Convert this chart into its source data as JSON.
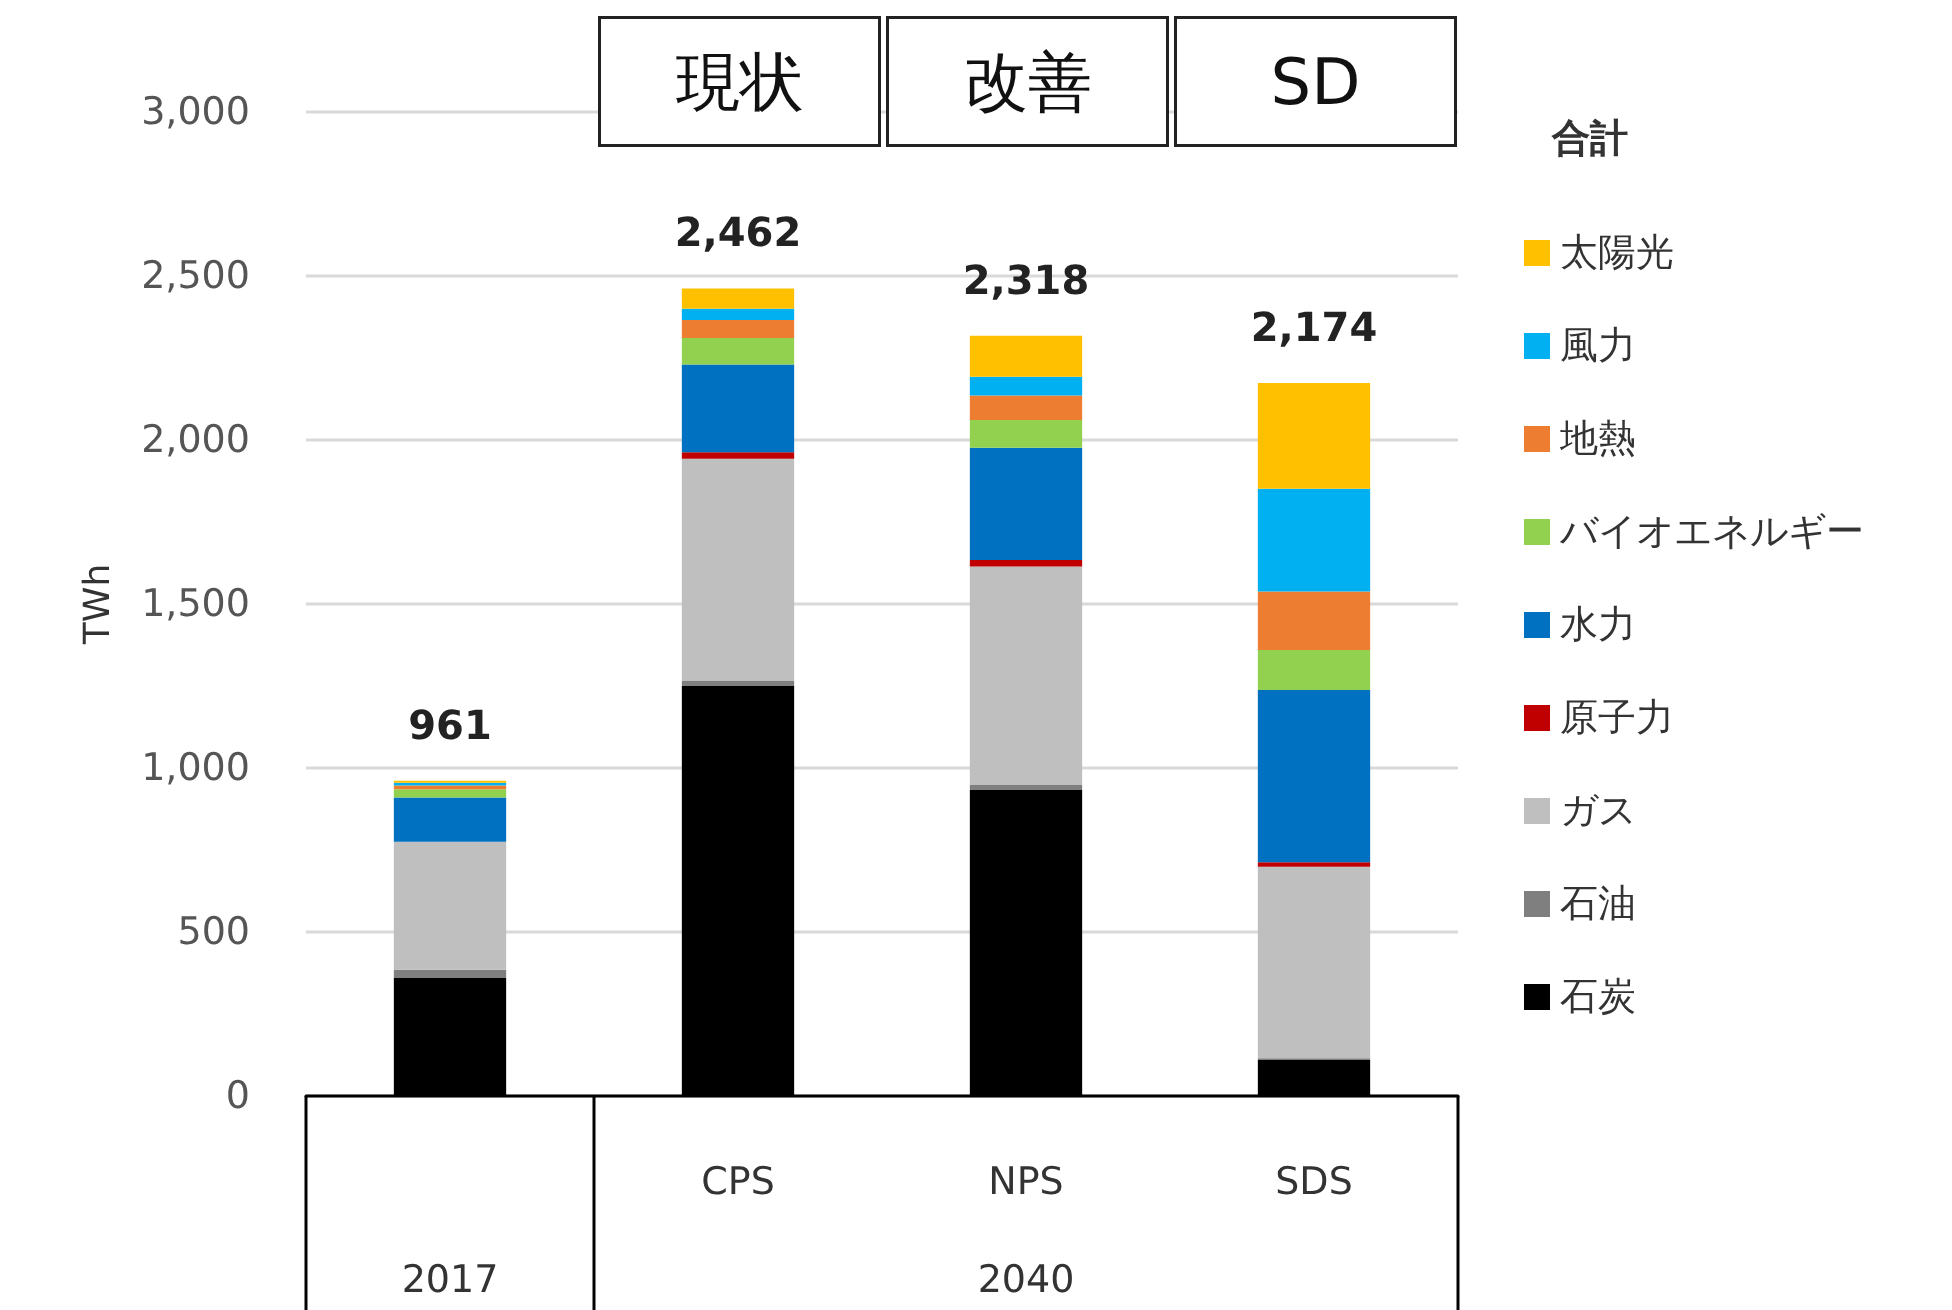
{
  "chart_data": {
    "type": "bar",
    "stacked": true,
    "ylabel": "TWh",
    "legend_title": "合計",
    "categories": [
      null,
      "CPS",
      "NPS",
      "SDS"
    ],
    "series": [
      {
        "name": "石炭",
        "color": "#000000",
        "values": [
          360,
          1250,
          933,
          110
        ]
      },
      {
        "name": "石油",
        "color": "#7f7f7f",
        "values": [
          25,
          15,
          15,
          5
        ]
      },
      {
        "name": "ガス",
        "color": "#bfbfbf",
        "values": [
          390,
          678,
          666,
          584
        ]
      },
      {
        "name": "原子力",
        "color": "#c00000",
        "values": [
          0,
          20,
          20,
          14
        ]
      },
      {
        "name": "水力",
        "color": "#0070c0",
        "values": [
          135,
          267,
          342,
          525
        ]
      },
      {
        "name": "バイオエネルギー",
        "color": "#92d050",
        "values": [
          25,
          81,
          85,
          122
        ]
      },
      {
        "name": "地熱",
        "color": "#ed7d31",
        "values": [
          12,
          55,
          75,
          178
        ]
      },
      {
        "name": "風力",
        "color": "#00b0f0",
        "values": [
          8,
          34,
          57,
          313
        ]
      },
      {
        "name": "太陽光",
        "color": "#ffc000",
        "values": [
          6,
          62,
          125,
          323
        ]
      }
    ],
    "totals": [
      "961",
      "2,462",
      "2,318",
      "2,174"
    ],
    "ylim": [
      0,
      3000
    ],
    "yticks": [
      {
        "value": 0,
        "label": "0"
      },
      {
        "value": 500,
        "label": "500"
      },
      {
        "value": 1000,
        "label": "1,000"
      },
      {
        "value": 1500,
        "label": "1,500"
      },
      {
        "value": 2000,
        "label": "2,000"
      },
      {
        "value": 2500,
        "label": "2,500"
      },
      {
        "value": 3000,
        "label": "3,000"
      }
    ],
    "grid": "y",
    "legend": "right",
    "annotations": [
      "現状",
      "改善",
      "SD",
      "2017",
      "2040"
    ]
  }
}
